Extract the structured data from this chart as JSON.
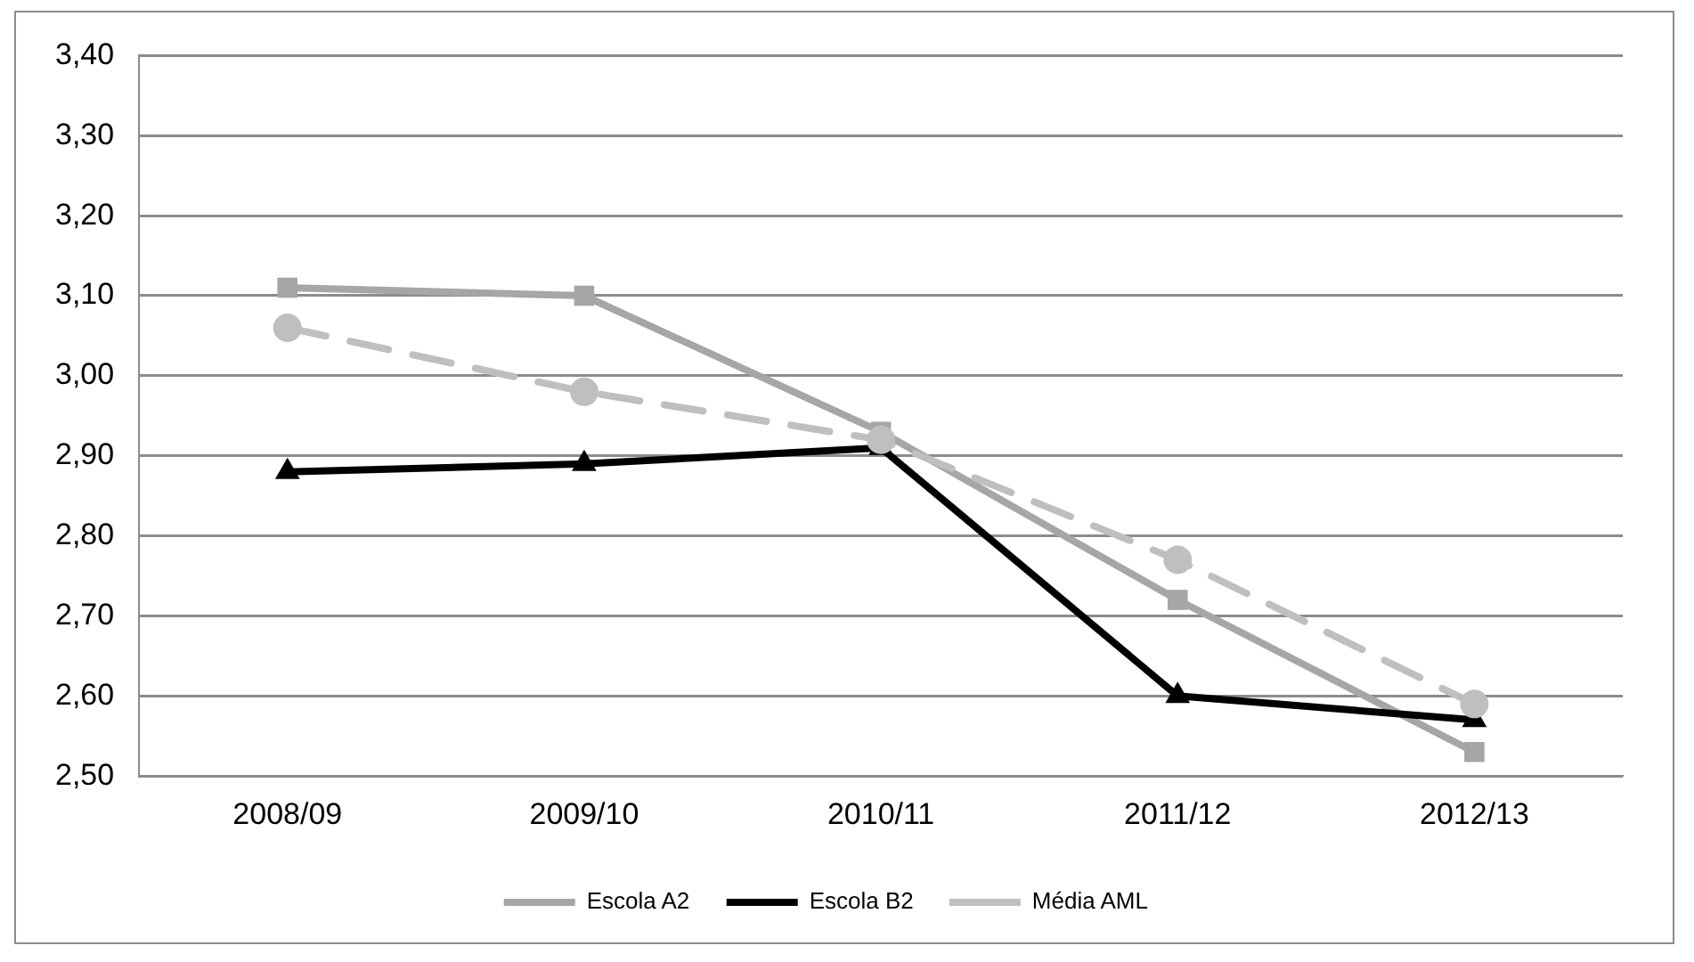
{
  "chart_data": {
    "type": "line",
    "categories": [
      "2008/09",
      "2009/10",
      "2010/11",
      "2011/12",
      "2012/13"
    ],
    "series": [
      {
        "name": "Escola A2",
        "color": "#a6a6a6",
        "marker": "square",
        "line_style": "solid",
        "values": [
          3.11,
          3.1,
          2.93,
          2.72,
          2.53
        ]
      },
      {
        "name": "Escola B2",
        "color": "#000000",
        "marker": "triangle",
        "line_style": "solid",
        "values": [
          2.88,
          2.89,
          2.91,
          2.6,
          2.57
        ]
      },
      {
        "name": "Média AML",
        "color": "#bfbfbf",
        "marker": "circle",
        "line_style": "dashed",
        "values": [
          3.06,
          2.98,
          2.92,
          2.77,
          2.59
        ]
      }
    ],
    "ylim": [
      2.5,
      3.4
    ],
    "yticks": [
      {
        "value": 2.5,
        "label": "2,50"
      },
      {
        "value": 2.6,
        "label": "2,60"
      },
      {
        "value": 2.7,
        "label": "2,70"
      },
      {
        "value": 2.8,
        "label": "2,80"
      },
      {
        "value": 2.9,
        "label": "2,90"
      },
      {
        "value": 3.0,
        "label": "3,00"
      },
      {
        "value": 3.1,
        "label": "3,10"
      },
      {
        "value": 3.2,
        "label": "3,20"
      },
      {
        "value": 3.3,
        "label": "3,30"
      },
      {
        "value": 3.4,
        "label": "3,40"
      }
    ],
    "grid": "y",
    "legend": "bottom"
  }
}
